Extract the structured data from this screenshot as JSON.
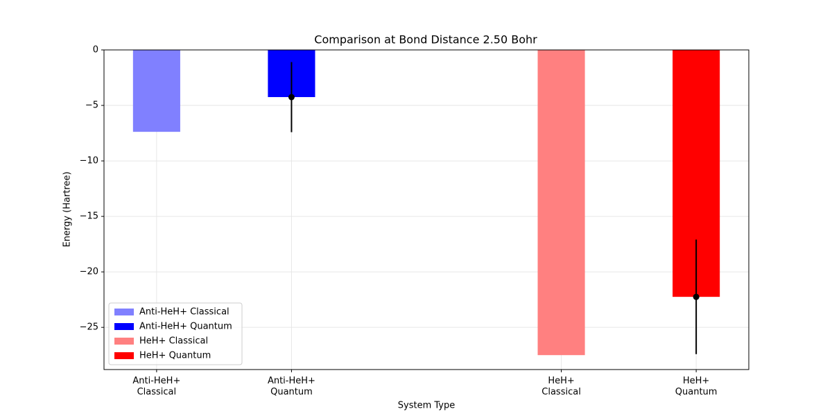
{
  "chart_data": {
    "type": "bar",
    "title": "Comparison at Bond Distance 2.50 Bohr",
    "xlabel": "System Type",
    "ylabel": "Energy (Hartree)",
    "xlim": [
      -0.39,
      4.39
    ],
    "ylim": [
      -28.8,
      0
    ],
    "xticks": [
      {
        "value": 0,
        "label": "Anti-HeH+\nClassical"
      },
      {
        "value": 1,
        "label": "Anti-HeH+\nQuantum"
      },
      {
        "value": 3,
        "label": "HeH+\nClassical"
      },
      {
        "value": 4,
        "label": "HeH+\nQuantum"
      }
    ],
    "yticks": [
      0,
      {
        "value": -5,
        "label": "−5"
      },
      {
        "value": -10,
        "label": "−10"
      },
      {
        "value": -15,
        "label": "−15"
      },
      {
        "value": -20,
        "label": "−20"
      },
      {
        "value": -25,
        "label": "−25"
      }
    ],
    "bar_width": 0.35,
    "grid": true,
    "legend": "lower left",
    "series": [
      {
        "name": "Anti-HeH+ Classical",
        "color": "#8080ff",
        "x": [
          0
        ],
        "values": [
          -7.38
        ]
      },
      {
        "name": "Anti-HeH+ Quantum",
        "color": "#0000ff",
        "x": [
          1
        ],
        "values": [
          -4.25
        ],
        "errors": [
          3.16
        ]
      },
      {
        "name": "HeH+ Classical",
        "color": "#ff8080",
        "x": [
          3
        ],
        "values": [
          -27.5
        ]
      },
      {
        "name": "HeH+ Quantum",
        "color": "#ff0000",
        "x": [
          4
        ],
        "values": [
          -22.25
        ],
        "errors": [
          5.16
        ]
      }
    ]
  }
}
